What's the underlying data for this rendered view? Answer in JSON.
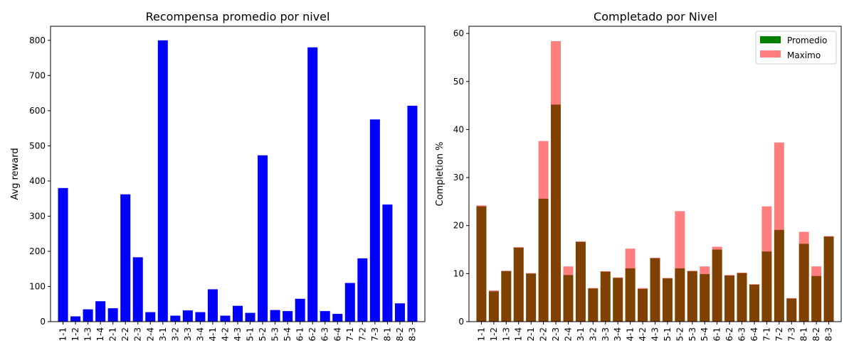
{
  "chart_data": [
    {
      "type": "bar",
      "title": "Recompensa promedio por nivel",
      "xlabel": "",
      "ylabel": "Avg reward",
      "ylim": [
        0,
        840
      ],
      "yticks": [
        0,
        100,
        200,
        300,
        400,
        500,
        600,
        700,
        800
      ],
      "categories": [
        "1-1",
        "1-2",
        "1-3",
        "1-4",
        "2-1",
        "2-2",
        "2-3",
        "2-4",
        "3-1",
        "3-2",
        "3-3",
        "3-4",
        "4-1",
        "4-2",
        "4-3",
        "5-1",
        "5-2",
        "5-3",
        "5-4",
        "6-1",
        "6-2",
        "6-3",
        "6-4",
        "7-1",
        "7-2",
        "7-3",
        "8-1",
        "8-2",
        "8-3"
      ],
      "series": [
        {
          "values": [
            380,
            15,
            35,
            58,
            38,
            362,
            183,
            27,
            800,
            17,
            32,
            27,
            92,
            17,
            45,
            25,
            473,
            33,
            30,
            65,
            780,
            30,
            22,
            110,
            180,
            575,
            333,
            52,
            614
          ],
          "color": "#0000ff"
        }
      ],
      "grid": false
    },
    {
      "type": "bar",
      "title": "Completado por Nivel",
      "xlabel": "",
      "ylabel": "Completion %",
      "ylim": [
        0,
        61.5
      ],
      "yticks": [
        0,
        10,
        20,
        30,
        40,
        50,
        60
      ],
      "legend_position": "top-right",
      "categories": [
        "1-1",
        "1-2",
        "1-3",
        "1-4",
        "2-1",
        "2-2",
        "2-3",
        "2-4",
        "3-1",
        "3-2",
        "3-3",
        "3-4",
        "4-1",
        "4-2",
        "4-3",
        "5-1",
        "5-2",
        "5-3",
        "5-4",
        "6-1",
        "6-2",
        "6-3",
        "6-4",
        "7-1",
        "7-2",
        "7-3",
        "8-1",
        "8-2",
        "8-3"
      ],
      "series": [
        {
          "name": "Promedio",
          "values": [
            24.0,
            6.3,
            10.5,
            15.4,
            10.0,
            25.6,
            45.2,
            9.7,
            16.6,
            6.9,
            10.4,
            9.1,
            11.1,
            6.8,
            13.2,
            9.0,
            11.1,
            10.5,
            9.9,
            15.0,
            9.6,
            10.1,
            7.7,
            14.6,
            19.1,
            4.8,
            16.2,
            9.5,
            17.7
          ],
          "color": "#008000"
        },
        {
          "name": "Maximo",
          "values": [
            24.2,
            6.5,
            10.6,
            15.5,
            10.1,
            37.6,
            58.4,
            11.5,
            16.7,
            7.0,
            10.5,
            9.2,
            15.2,
            7.0,
            13.3,
            9.1,
            23.0,
            10.6,
            11.5,
            15.6,
            9.7,
            10.2,
            7.8,
            24.0,
            37.3,
            4.9,
            18.7,
            11.5,
            17.8
          ],
          "color": "#ff0000",
          "alpha": 0.5
        }
      ],
      "grid": false
    }
  ]
}
